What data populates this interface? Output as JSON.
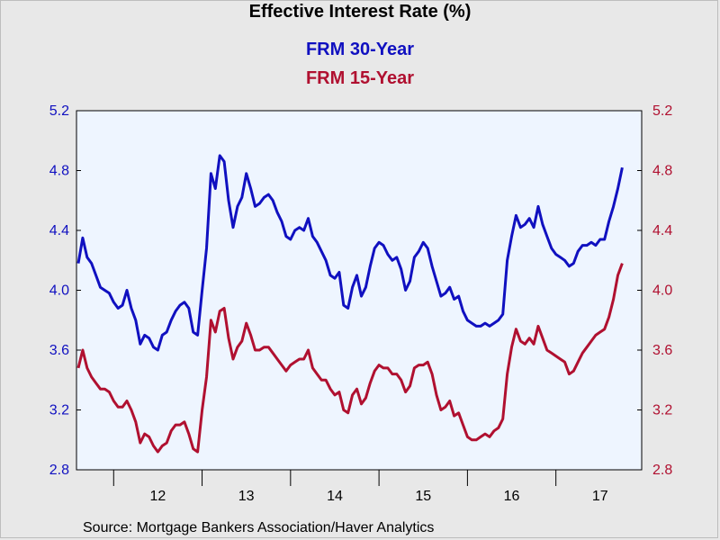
{
  "chart_data": {
    "type": "line",
    "title": "Effective Interest Rate (%)",
    "source": "Source:  Mortgage Bankers Association/Haver Analytics",
    "x_labels": [
      "12",
      "13",
      "14",
      "15",
      "16",
      "17"
    ],
    "x_range": [
      2011.58,
      2017.97
    ],
    "ylim_left": [
      2.8,
      5.2
    ],
    "ylim_right": [
      2.8,
      5.2
    ],
    "y_ticks_left": [
      "2.8",
      "3.2",
      "3.6",
      "4.0",
      "4.4",
      "4.8",
      "5.2"
    ],
    "y_ticks_right": [
      "2.8",
      "3.2",
      "3.6",
      "4.0",
      "4.4",
      "4.8",
      "5.2"
    ],
    "grid": false,
    "legend_position": "top",
    "series": [
      {
        "name": "FRM 30-Year",
        "color": "#1010c0",
        "axis": "left",
        "points": [
          [
            2011.6,
            4.18
          ],
          [
            2011.65,
            4.35
          ],
          [
            2011.7,
            4.22
          ],
          [
            2011.75,
            4.18
          ],
          [
            2011.8,
            4.1
          ],
          [
            2011.85,
            4.02
          ],
          [
            2011.9,
            4.0
          ],
          [
            2011.95,
            3.98
          ],
          [
            2012.0,
            3.92
          ],
          [
            2012.05,
            3.88
          ],
          [
            2012.1,
            3.9
          ],
          [
            2012.15,
            4.0
          ],
          [
            2012.2,
            3.88
          ],
          [
            2012.25,
            3.8
          ],
          [
            2012.3,
            3.64
          ],
          [
            2012.35,
            3.7
          ],
          [
            2012.4,
            3.68
          ],
          [
            2012.45,
            3.62
          ],
          [
            2012.5,
            3.6
          ],
          [
            2012.55,
            3.7
          ],
          [
            2012.6,
            3.72
          ],
          [
            2012.65,
            3.8
          ],
          [
            2012.7,
            3.86
          ],
          [
            2012.75,
            3.9
          ],
          [
            2012.8,
            3.92
          ],
          [
            2012.85,
            3.88
          ],
          [
            2012.9,
            3.72
          ],
          [
            2012.95,
            3.7
          ],
          [
            2013.0,
            4.0
          ],
          [
            2013.05,
            4.28
          ],
          [
            2013.1,
            4.78
          ],
          [
            2013.15,
            4.68
          ],
          [
            2013.2,
            4.9
          ],
          [
            2013.25,
            4.86
          ],
          [
            2013.3,
            4.6
          ],
          [
            2013.35,
            4.42
          ],
          [
            2013.4,
            4.56
          ],
          [
            2013.45,
            4.62
          ],
          [
            2013.5,
            4.78
          ],
          [
            2013.55,
            4.68
          ],
          [
            2013.6,
            4.56
          ],
          [
            2013.65,
            4.58
          ],
          [
            2013.7,
            4.62
          ],
          [
            2013.75,
            4.64
          ],
          [
            2013.8,
            4.6
          ],
          [
            2013.85,
            4.52
          ],
          [
            2013.9,
            4.46
          ],
          [
            2013.95,
            4.36
          ],
          [
            2014.0,
            4.34
          ],
          [
            2014.05,
            4.4
          ],
          [
            2014.1,
            4.42
          ],
          [
            2014.15,
            4.4
          ],
          [
            2014.2,
            4.48
          ],
          [
            2014.25,
            4.36
          ],
          [
            2014.3,
            4.32
          ],
          [
            2014.35,
            4.26
          ],
          [
            2014.4,
            4.2
          ],
          [
            2014.45,
            4.1
          ],
          [
            2014.5,
            4.08
          ],
          [
            2014.55,
            4.12
          ],
          [
            2014.6,
            3.9
          ],
          [
            2014.65,
            3.88
          ],
          [
            2014.7,
            4.02
          ],
          [
            2014.75,
            4.1
          ],
          [
            2014.8,
            3.96
          ],
          [
            2014.85,
            4.02
          ],
          [
            2014.9,
            4.16
          ],
          [
            2014.95,
            4.28
          ],
          [
            2015.0,
            4.32
          ],
          [
            2015.05,
            4.3
          ],
          [
            2015.1,
            4.24
          ],
          [
            2015.15,
            4.2
          ],
          [
            2015.2,
            4.22
          ],
          [
            2015.25,
            4.14
          ],
          [
            2015.3,
            4.0
          ],
          [
            2015.35,
            4.06
          ],
          [
            2015.4,
            4.22
          ],
          [
            2015.45,
            4.26
          ],
          [
            2015.5,
            4.32
          ],
          [
            2015.55,
            4.28
          ],
          [
            2015.6,
            4.16
          ],
          [
            2015.65,
            4.06
          ],
          [
            2015.7,
            3.96
          ],
          [
            2015.75,
            3.98
          ],
          [
            2015.8,
            4.02
          ],
          [
            2015.85,
            3.94
          ],
          [
            2015.9,
            3.96
          ],
          [
            2015.95,
            3.86
          ],
          [
            2016.0,
            3.8
          ],
          [
            2016.05,
            3.78
          ],
          [
            2016.1,
            3.76
          ],
          [
            2016.15,
            3.76
          ],
          [
            2016.2,
            3.78
          ],
          [
            2016.25,
            3.76
          ],
          [
            2016.3,
            3.78
          ],
          [
            2016.35,
            3.8
          ],
          [
            2016.4,
            3.84
          ],
          [
            2016.45,
            4.2
          ],
          [
            2016.5,
            4.36
          ],
          [
            2016.55,
            4.5
          ],
          [
            2016.6,
            4.42
          ],
          [
            2016.65,
            4.44
          ],
          [
            2016.7,
            4.48
          ],
          [
            2016.75,
            4.42
          ],
          [
            2016.8,
            4.56
          ],
          [
            2016.85,
            4.44
          ],
          [
            2016.9,
            4.36
          ],
          [
            2016.95,
            4.28
          ],
          [
            2017.0,
            4.24
          ],
          [
            2017.05,
            4.22
          ],
          [
            2017.1,
            4.2
          ],
          [
            2017.15,
            4.16
          ],
          [
            2017.2,
            4.18
          ],
          [
            2017.25,
            4.26
          ],
          [
            2017.3,
            4.3
          ],
          [
            2017.35,
            4.3
          ],
          [
            2017.4,
            4.32
          ],
          [
            2017.45,
            4.3
          ],
          [
            2017.5,
            4.34
          ],
          [
            2017.55,
            4.34
          ],
          [
            2017.6,
            4.46
          ],
          [
            2017.65,
            4.56
          ],
          [
            2017.7,
            4.68
          ],
          [
            2017.75,
            4.82
          ]
        ]
      },
      {
        "name": "FRM 15-Year",
        "color": "#b01030",
        "axis": "right",
        "points": [
          [
            2011.6,
            3.48
          ],
          [
            2011.65,
            3.6
          ],
          [
            2011.7,
            3.48
          ],
          [
            2011.75,
            3.42
          ],
          [
            2011.8,
            3.38
          ],
          [
            2011.85,
            3.34
          ],
          [
            2011.9,
            3.34
          ],
          [
            2011.95,
            3.32
          ],
          [
            2012.0,
            3.26
          ],
          [
            2012.05,
            3.22
          ],
          [
            2012.1,
            3.22
          ],
          [
            2012.15,
            3.26
          ],
          [
            2012.2,
            3.2
          ],
          [
            2012.25,
            3.12
          ],
          [
            2012.3,
            2.98
          ],
          [
            2012.35,
            3.04
          ],
          [
            2012.4,
            3.02
          ],
          [
            2012.45,
            2.96
          ],
          [
            2012.5,
            2.92
          ],
          [
            2012.55,
            2.96
          ],
          [
            2012.6,
            2.98
          ],
          [
            2012.65,
            3.06
          ],
          [
            2012.7,
            3.1
          ],
          [
            2012.75,
            3.1
          ],
          [
            2012.8,
            3.12
          ],
          [
            2012.85,
            3.04
          ],
          [
            2012.9,
            2.94
          ],
          [
            2012.95,
            2.92
          ],
          [
            2013.0,
            3.2
          ],
          [
            2013.05,
            3.42
          ],
          [
            2013.1,
            3.8
          ],
          [
            2013.15,
            3.72
          ],
          [
            2013.2,
            3.86
          ],
          [
            2013.25,
            3.88
          ],
          [
            2013.3,
            3.68
          ],
          [
            2013.35,
            3.54
          ],
          [
            2013.4,
            3.62
          ],
          [
            2013.45,
            3.66
          ],
          [
            2013.5,
            3.78
          ],
          [
            2013.55,
            3.7
          ],
          [
            2013.6,
            3.6
          ],
          [
            2013.65,
            3.6
          ],
          [
            2013.7,
            3.62
          ],
          [
            2013.75,
            3.62
          ],
          [
            2013.8,
            3.58
          ],
          [
            2013.85,
            3.54
          ],
          [
            2013.9,
            3.5
          ],
          [
            2013.95,
            3.46
          ],
          [
            2014.0,
            3.5
          ],
          [
            2014.05,
            3.52
          ],
          [
            2014.1,
            3.54
          ],
          [
            2014.15,
            3.54
          ],
          [
            2014.2,
            3.6
          ],
          [
            2014.25,
            3.48
          ],
          [
            2014.3,
            3.44
          ],
          [
            2014.35,
            3.4
          ],
          [
            2014.4,
            3.4
          ],
          [
            2014.45,
            3.34
          ],
          [
            2014.5,
            3.3
          ],
          [
            2014.55,
            3.32
          ],
          [
            2014.6,
            3.2
          ],
          [
            2014.65,
            3.18
          ],
          [
            2014.7,
            3.3
          ],
          [
            2014.75,
            3.34
          ],
          [
            2014.8,
            3.24
          ],
          [
            2014.85,
            3.28
          ],
          [
            2014.9,
            3.38
          ],
          [
            2014.95,
            3.46
          ],
          [
            2015.0,
            3.5
          ],
          [
            2015.05,
            3.48
          ],
          [
            2015.1,
            3.48
          ],
          [
            2015.15,
            3.44
          ],
          [
            2015.2,
            3.44
          ],
          [
            2015.25,
            3.4
          ],
          [
            2015.3,
            3.32
          ],
          [
            2015.35,
            3.36
          ],
          [
            2015.4,
            3.48
          ],
          [
            2015.45,
            3.5
          ],
          [
            2015.5,
            3.5
          ],
          [
            2015.55,
            3.52
          ],
          [
            2015.6,
            3.44
          ],
          [
            2015.65,
            3.3
          ],
          [
            2015.7,
            3.2
          ],
          [
            2015.75,
            3.22
          ],
          [
            2015.8,
            3.26
          ],
          [
            2015.85,
            3.16
          ],
          [
            2015.9,
            3.18
          ],
          [
            2015.95,
            3.1
          ],
          [
            2016.0,
            3.02
          ],
          [
            2016.05,
            3.0
          ],
          [
            2016.1,
            3.0
          ],
          [
            2016.15,
            3.02
          ],
          [
            2016.2,
            3.04
          ],
          [
            2016.25,
            3.02
          ],
          [
            2016.3,
            3.06
          ],
          [
            2016.35,
            3.08
          ],
          [
            2016.4,
            3.14
          ],
          [
            2016.45,
            3.44
          ],
          [
            2016.5,
            3.62
          ],
          [
            2016.55,
            3.74
          ],
          [
            2016.6,
            3.66
          ],
          [
            2016.65,
            3.64
          ],
          [
            2016.7,
            3.68
          ],
          [
            2016.75,
            3.64
          ],
          [
            2016.8,
            3.76
          ],
          [
            2016.85,
            3.68
          ],
          [
            2016.9,
            3.6
          ],
          [
            2016.95,
            3.58
          ],
          [
            2017.0,
            3.56
          ],
          [
            2017.05,
            3.54
          ],
          [
            2017.1,
            3.52
          ],
          [
            2017.15,
            3.44
          ],
          [
            2017.2,
            3.46
          ],
          [
            2017.25,
            3.52
          ],
          [
            2017.3,
            3.58
          ],
          [
            2017.35,
            3.62
          ],
          [
            2017.4,
            3.66
          ],
          [
            2017.45,
            3.7
          ],
          [
            2017.5,
            3.72
          ],
          [
            2017.55,
            3.74
          ],
          [
            2017.6,
            3.82
          ],
          [
            2017.65,
            3.94
          ],
          [
            2017.7,
            4.1
          ],
          [
            2017.75,
            4.18
          ]
        ]
      }
    ]
  }
}
